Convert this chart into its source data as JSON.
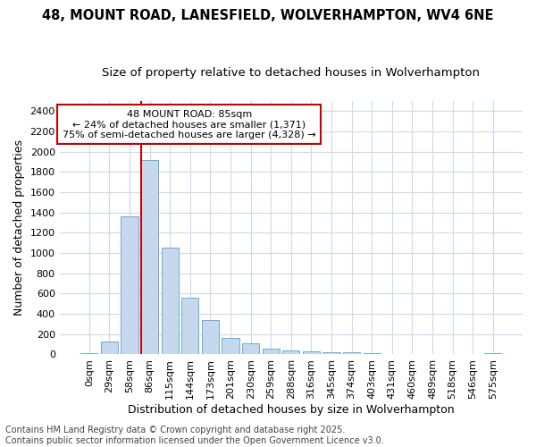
{
  "title_line1": "48, MOUNT ROAD, LANESFIELD, WOLVERHAMPTON, WV4 6NE",
  "title_line2": "Size of property relative to detached houses in Wolverhampton",
  "xlabel": "Distribution of detached houses by size in Wolverhampton",
  "ylabel": "Number of detached properties",
  "categories": [
    "0sqm",
    "29sqm",
    "58sqm",
    "86sqm",
    "115sqm",
    "144sqm",
    "173sqm",
    "201sqm",
    "230sqm",
    "259sqm",
    "288sqm",
    "316sqm",
    "345sqm",
    "374sqm",
    "403sqm",
    "431sqm",
    "460sqm",
    "489sqm",
    "518sqm",
    "546sqm",
    "575sqm"
  ],
  "values": [
    10,
    125,
    1360,
    1920,
    1055,
    560,
    335,
    165,
    110,
    60,
    35,
    28,
    25,
    18,
    10,
    8,
    5,
    5,
    3,
    3,
    10
  ],
  "bar_color": "#c5d8ee",
  "bar_edge_color": "#6aaed6",
  "vline_color": "#cc0000",
  "annotation_text": "48 MOUNT ROAD: 85sqm\n← 24% of detached houses are smaller (1,371)\n75% of semi-detached houses are larger (4,328) →",
  "annotation_box_color": "#cc0000",
  "ylim": [
    0,
    2500
  ],
  "yticks": [
    0,
    200,
    400,
    600,
    800,
    1000,
    1200,
    1400,
    1600,
    1800,
    2000,
    2200,
    2400
  ],
  "background_color": "#ffffff",
  "grid_color": "#d0d8e8",
  "footer_line1": "Contains HM Land Registry data © Crown copyright and database right 2025.",
  "footer_line2": "Contains public sector information licensed under the Open Government Licence v3.0.",
  "title_fontsize": 10.5,
  "subtitle_fontsize": 9.5,
  "label_fontsize": 9,
  "tick_fontsize": 8,
  "annot_fontsize": 8,
  "footer_fontsize": 7
}
